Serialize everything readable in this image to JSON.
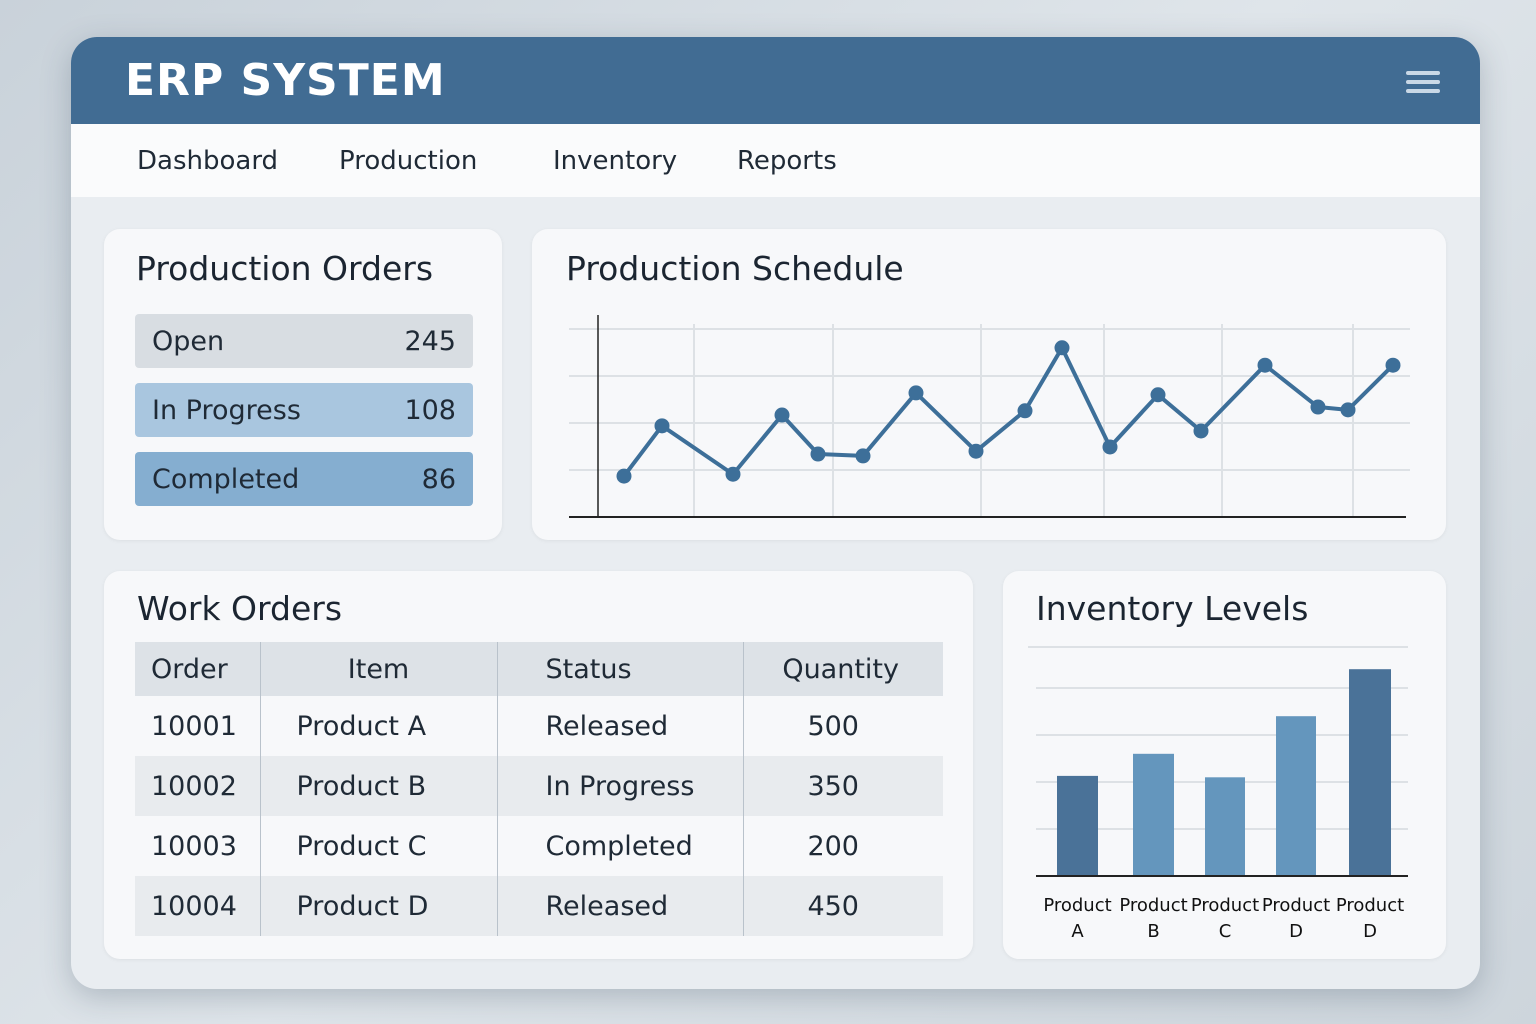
{
  "app": {
    "title": "ERP SYSTEM",
    "menu_icon": "hamburger-menu-icon"
  },
  "nav": [
    "Dashboard",
    "Production",
    "Inventory",
    "Reports"
  ],
  "production_orders": {
    "title": "Production Orders",
    "stats": [
      {
        "label": "Open",
        "value": "245"
      },
      {
        "label": "In Progress",
        "value": "108"
      },
      {
        "label": "Completed",
        "value": "86"
      }
    ]
  },
  "schedule": {
    "title": "Production Schedule"
  },
  "work_orders": {
    "title": "Work Orders",
    "headers": [
      "Order",
      "Item",
      "Status",
      "Quantity"
    ],
    "rows": [
      [
        "10001",
        "Product A",
        "Released",
        "500"
      ],
      [
        "10002",
        "Product B",
        "In Progress",
        "350"
      ],
      [
        "10003",
        "Product C",
        "Completed",
        "200"
      ],
      [
        "10004",
        "Product D",
        "Released",
        "450"
      ]
    ]
  },
  "inventory": {
    "title": "Inventory Levels"
  },
  "chart_data": [
    {
      "type": "line",
      "title": "Production Schedule",
      "xlabel": "",
      "ylabel": "",
      "ylim": [
        0,
        4.3
      ],
      "grid": true,
      "x": [
        1,
        2,
        3,
        4,
        5,
        6,
        7,
        8,
        9,
        10,
        11,
        12,
        13,
        14,
        15,
        16,
        17
      ],
      "values": [
        0.87,
        1.94,
        0.91,
        2.17,
        1.34,
        1.3,
        2.64,
        1.4,
        2.26,
        3.6,
        1.49,
        2.6,
        1.83,
        3.23,
        2.34,
        2.28,
        3.23
      ],
      "color": "#3d6f99"
    },
    {
      "type": "bar",
      "title": "Inventory Levels",
      "categories": [
        "Product A",
        "Product B",
        "Product C",
        "Product D",
        "Product D"
      ],
      "values": [
        2.13,
        2.6,
        2.1,
        3.4,
        4.4
      ],
      "ylim": [
        0,
        4.87
      ],
      "grid": true,
      "colors": [
        "#4a7298",
        "#6496bd",
        "#6496bd",
        "#6496bd",
        "#4a7298"
      ]
    }
  ]
}
